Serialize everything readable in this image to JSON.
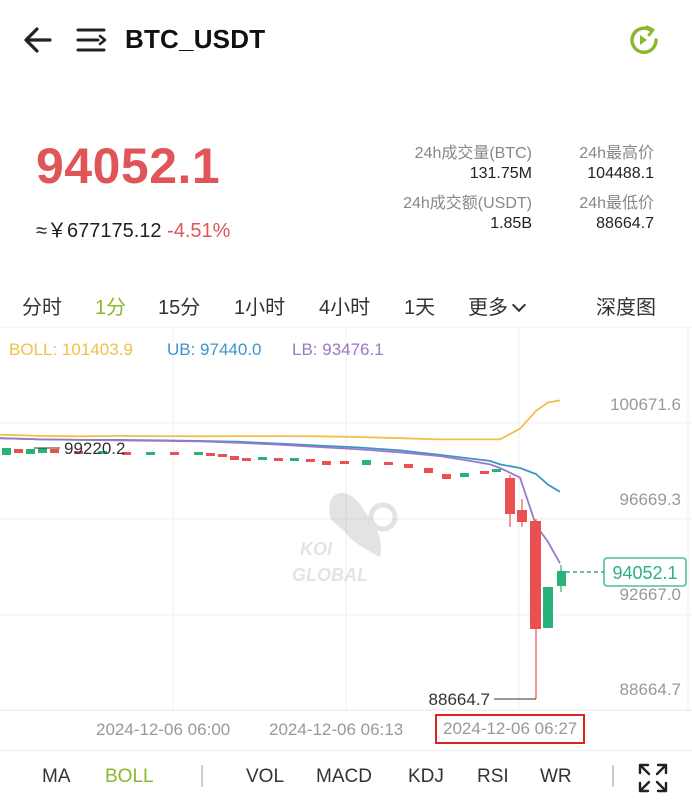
{
  "header": {
    "pair": "BTC_USDT",
    "back_icon": "arrow-left-icon",
    "menu_icon": "menu-list-icon",
    "refresh_icon": "refresh-icon"
  },
  "ticker": {
    "last_price": "94052.1",
    "cny_value": "≈￥677175.12",
    "change_pct": "-4.51%",
    "stats": {
      "vol_btc_label": "24h成交量(BTC)",
      "vol_btc": "131.75M",
      "high_label": "24h最高价",
      "high": "104488.1",
      "vol_usdt_label": "24h成交额(USDT)",
      "vol_usdt": "1.85B",
      "low_label": "24h最低价",
      "low": "88664.7"
    }
  },
  "tabs": {
    "fenshi": "分时",
    "m1": "1分",
    "m15": "15分",
    "h1": "1小时",
    "h4": "4小时",
    "d1": "1天",
    "more": "更多",
    "depth": "深度图"
  },
  "chart": {
    "boll_label": "BOLL: 101403.9",
    "ub_label": "UB: 97440.0",
    "lb_label": "LB: 93476.1",
    "price_ticks": [
      "100671.6",
      "96669.3",
      "92667.0",
      "88664.7"
    ],
    "high_marker": "99220.2",
    "low_marker": "88664.7",
    "current_tag": "94052.1",
    "watermark_line1": "KOI",
    "watermark_line2": "GLOBAL",
    "colors": {
      "up": "#2bb27b",
      "down": "#e9504f",
      "boll": "#f0c04a",
      "ub": "#3b95c9",
      "lb": "#9b79c4"
    }
  },
  "chart_data": {
    "type": "candlestick",
    "y_ticks": [
      100671.6,
      96669.3,
      92667.0,
      88664.7
    ],
    "ylim": [
      88664.7,
      102700
    ],
    "series": [
      {
        "name": "BOLL",
        "values": [
          99300,
          99250,
          99230,
          99250,
          99240,
          99230,
          99240,
          99240,
          99230,
          99200,
          99150,
          99100,
          99100,
          99100,
          99100,
          99550,
          100300,
          100650,
          100740
        ]
      },
      {
        "name": "UB",
        "values": [
          99150,
          99100,
          99080,
          99080,
          99060,
          99040,
          99000,
          98920,
          98840,
          98760,
          98640,
          98450,
          98300,
          98200,
          98050,
          97900,
          97650,
          97200,
          96900
        ]
      },
      {
        "name": "LB",
        "values": [
          99150,
          99100,
          99080,
          99060,
          99040,
          99020,
          98960,
          98880,
          98780,
          98680,
          98560,
          98400,
          98200,
          98050,
          97900,
          97500,
          95500,
          94800,
          93900
        ]
      }
    ]
  },
  "time_axis": {
    "t1": "2024-12-06 06:00",
    "t2": "2024-12-06 06:13",
    "t3": "2024-12-06 06:27"
  },
  "indicators": {
    "ma": "MA",
    "boll": "BOLL",
    "vol": "VOL",
    "macd": "MACD",
    "kdj": "KDJ",
    "rsi": "RSI",
    "wr": "WR",
    "expand_icon": "fullscreen-expand-icon"
  }
}
